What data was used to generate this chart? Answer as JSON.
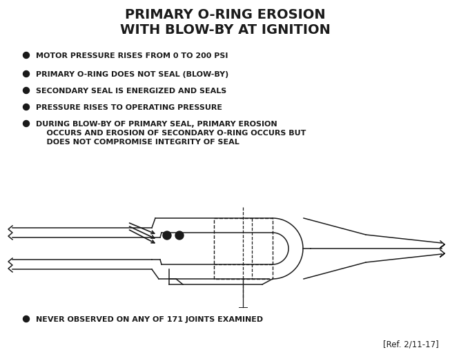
{
  "title_line1": "PRIMARY O-RING EROSION",
  "title_line2": "WITH BLOW-BY AT IGNITION",
  "bullets": [
    "MOTOR PRESSURE RISES FROM 0 TO 200 PSI",
    "PRIMARY O-RING DOES NOT SEAL (BLOW-BY)",
    "SECONDARY SEAL IS ENERGIZED AND SEALS",
    "PRESSURE RISES TO OPERATING PRESSURE",
    "DURING BLOW-BY OF PRIMARY SEAL, PRIMARY EROSION\n    OCCURS AND EROSION OF SECONDARY O-RING OCCURS BUT\n    DOES NOT COMPROMISE INTEGRITY OF SEAL"
  ],
  "last_bullet": "NEVER OBSERVED ON ANY OF 171 JOINTS EXAMINED",
  "ref": "[Ref. 2/11-17]",
  "bg_color": "#ffffff",
  "text_color": "#1a1a1a",
  "title_fontsize": 14,
  "bullet_fontsize": 8.0,
  "ref_fontsize": 8.5
}
